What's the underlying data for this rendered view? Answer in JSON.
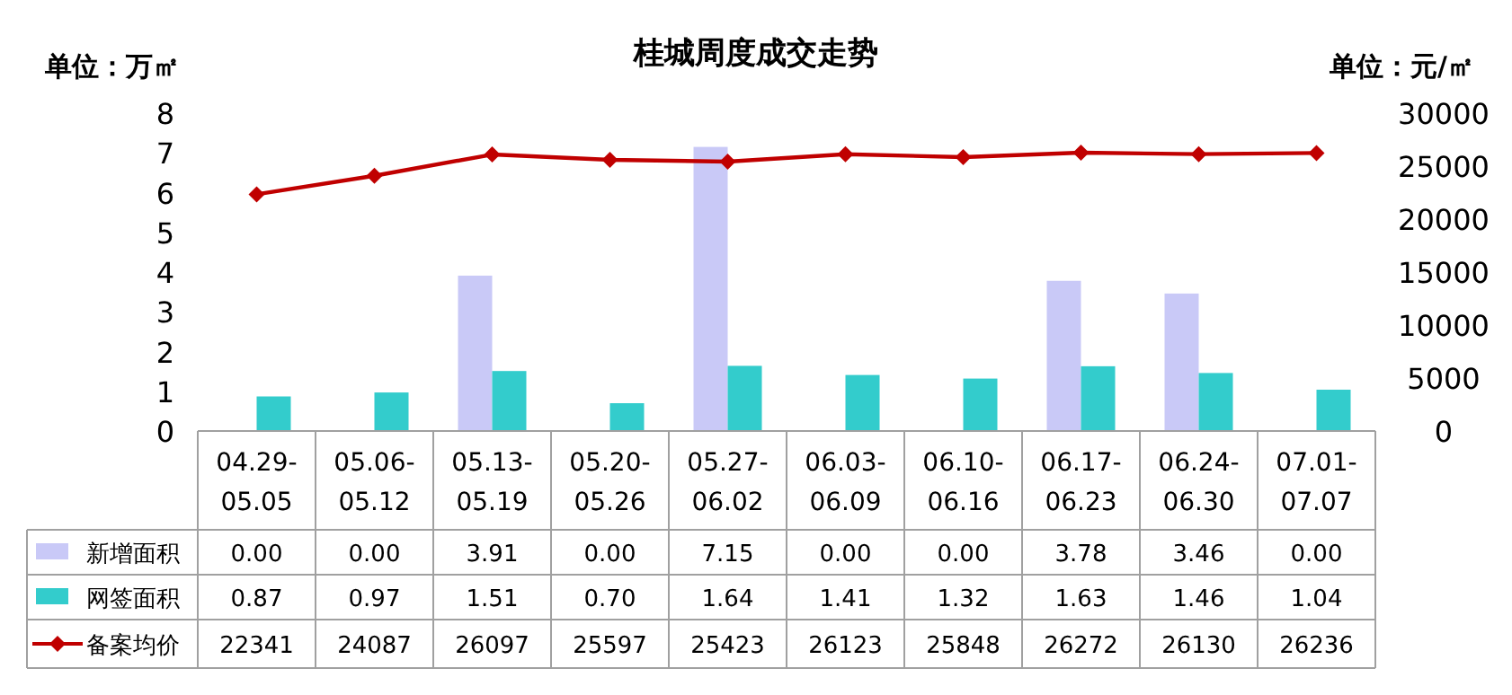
{
  "chart_data": {
    "type": "bar",
    "title": "桂城周度成交走势",
    "ylabel": "单位：万㎡",
    "y2label": "单位：元/㎡",
    "categories": [
      "04.29-05.05",
      "05.06-05.12",
      "05.13-05.19",
      "05.20-05.26",
      "05.27-06.02",
      "06.03-06.09",
      "06.10-06.16",
      "06.17-06.23",
      "06.24-06.30",
      "07.01-07.07"
    ],
    "series": [
      {
        "name": "新增面积",
        "color": "#c9c9f7",
        "values": [
          0.0,
          0.0,
          3.91,
          0.0,
          7.15,
          0.0,
          0.0,
          3.78,
          3.46,
          0.0
        ],
        "value_labels": [
          "0.00",
          "0.00",
          "3.91",
          "0.00",
          "7.15",
          "0.00",
          "0.00",
          "3.78",
          "3.46",
          "0.00"
        ]
      },
      {
        "name": "网签面积",
        "color": "#33cccc",
        "values": [
          0.87,
          0.97,
          1.51,
          0.7,
          1.64,
          1.41,
          1.32,
          1.63,
          1.46,
          1.04
        ],
        "value_labels": [
          "0.87",
          "0.97",
          "1.51",
          "0.70",
          "1.64",
          "1.41",
          "1.32",
          "1.63",
          "1.46",
          "1.04"
        ]
      },
      {
        "name": "备案均价",
        "type": "line",
        "axis": "y2",
        "color": "#c00000",
        "values": [
          22341,
          24087,
          26097,
          25597,
          25423,
          26123,
          25848,
          26272,
          26130,
          26236
        ],
        "value_labels": [
          "22341",
          "24087",
          "26097",
          "25597",
          "25423",
          "26123",
          "25848",
          "26272",
          "26130",
          "26236"
        ]
      }
    ],
    "ylim": [
      0,
      8
    ],
    "yticks": [
      0,
      1,
      2,
      3,
      4,
      5,
      6,
      7,
      8
    ],
    "y2lim": [
      0,
      30000
    ],
    "y2ticks": [
      0,
      5000,
      10000,
      15000,
      20000,
      25000,
      30000
    ],
    "marker": "diamond",
    "line_style": "solid",
    "legend": "bottom"
  }
}
